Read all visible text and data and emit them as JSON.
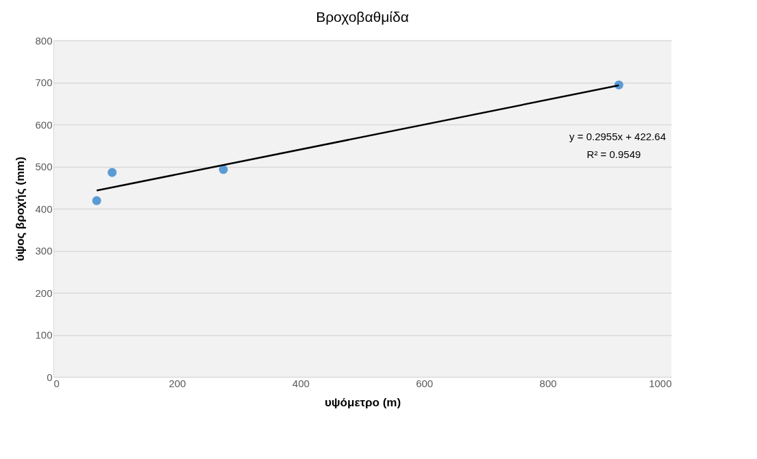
{
  "chart_data": {
    "type": "scatter",
    "title": "Βροχοβαθμίδα",
    "xlabel": "υψόμετρο (m)",
    "ylabel": "ύψος βροχής (mm)",
    "series": [
      {
        "color": "#5b9bd5",
        "marker": "circle",
        "x": [
          70,
          95,
          275,
          915
        ],
        "values": [
          419,
          486,
          493,
          694
        ]
      },
      {
        "type": "line",
        "color": "#000000",
        "marker": "none",
        "x": [
          70,
          915
        ],
        "values": [
          443,
          693
        ]
      }
    ],
    "xlim": [
      0,
      1000
    ],
    "xticks": [
      0,
      200,
      400,
      600,
      800,
      1000
    ],
    "ylim": [
      0,
      800
    ],
    "yticks": [
      0,
      100,
      200,
      300,
      400,
      500,
      600,
      700,
      800
    ],
    "grid": "y",
    "line_style": "solid",
    "annotations": [
      "y = 0.2955x + 422.64",
      "R² = 0.9549"
    ]
  }
}
